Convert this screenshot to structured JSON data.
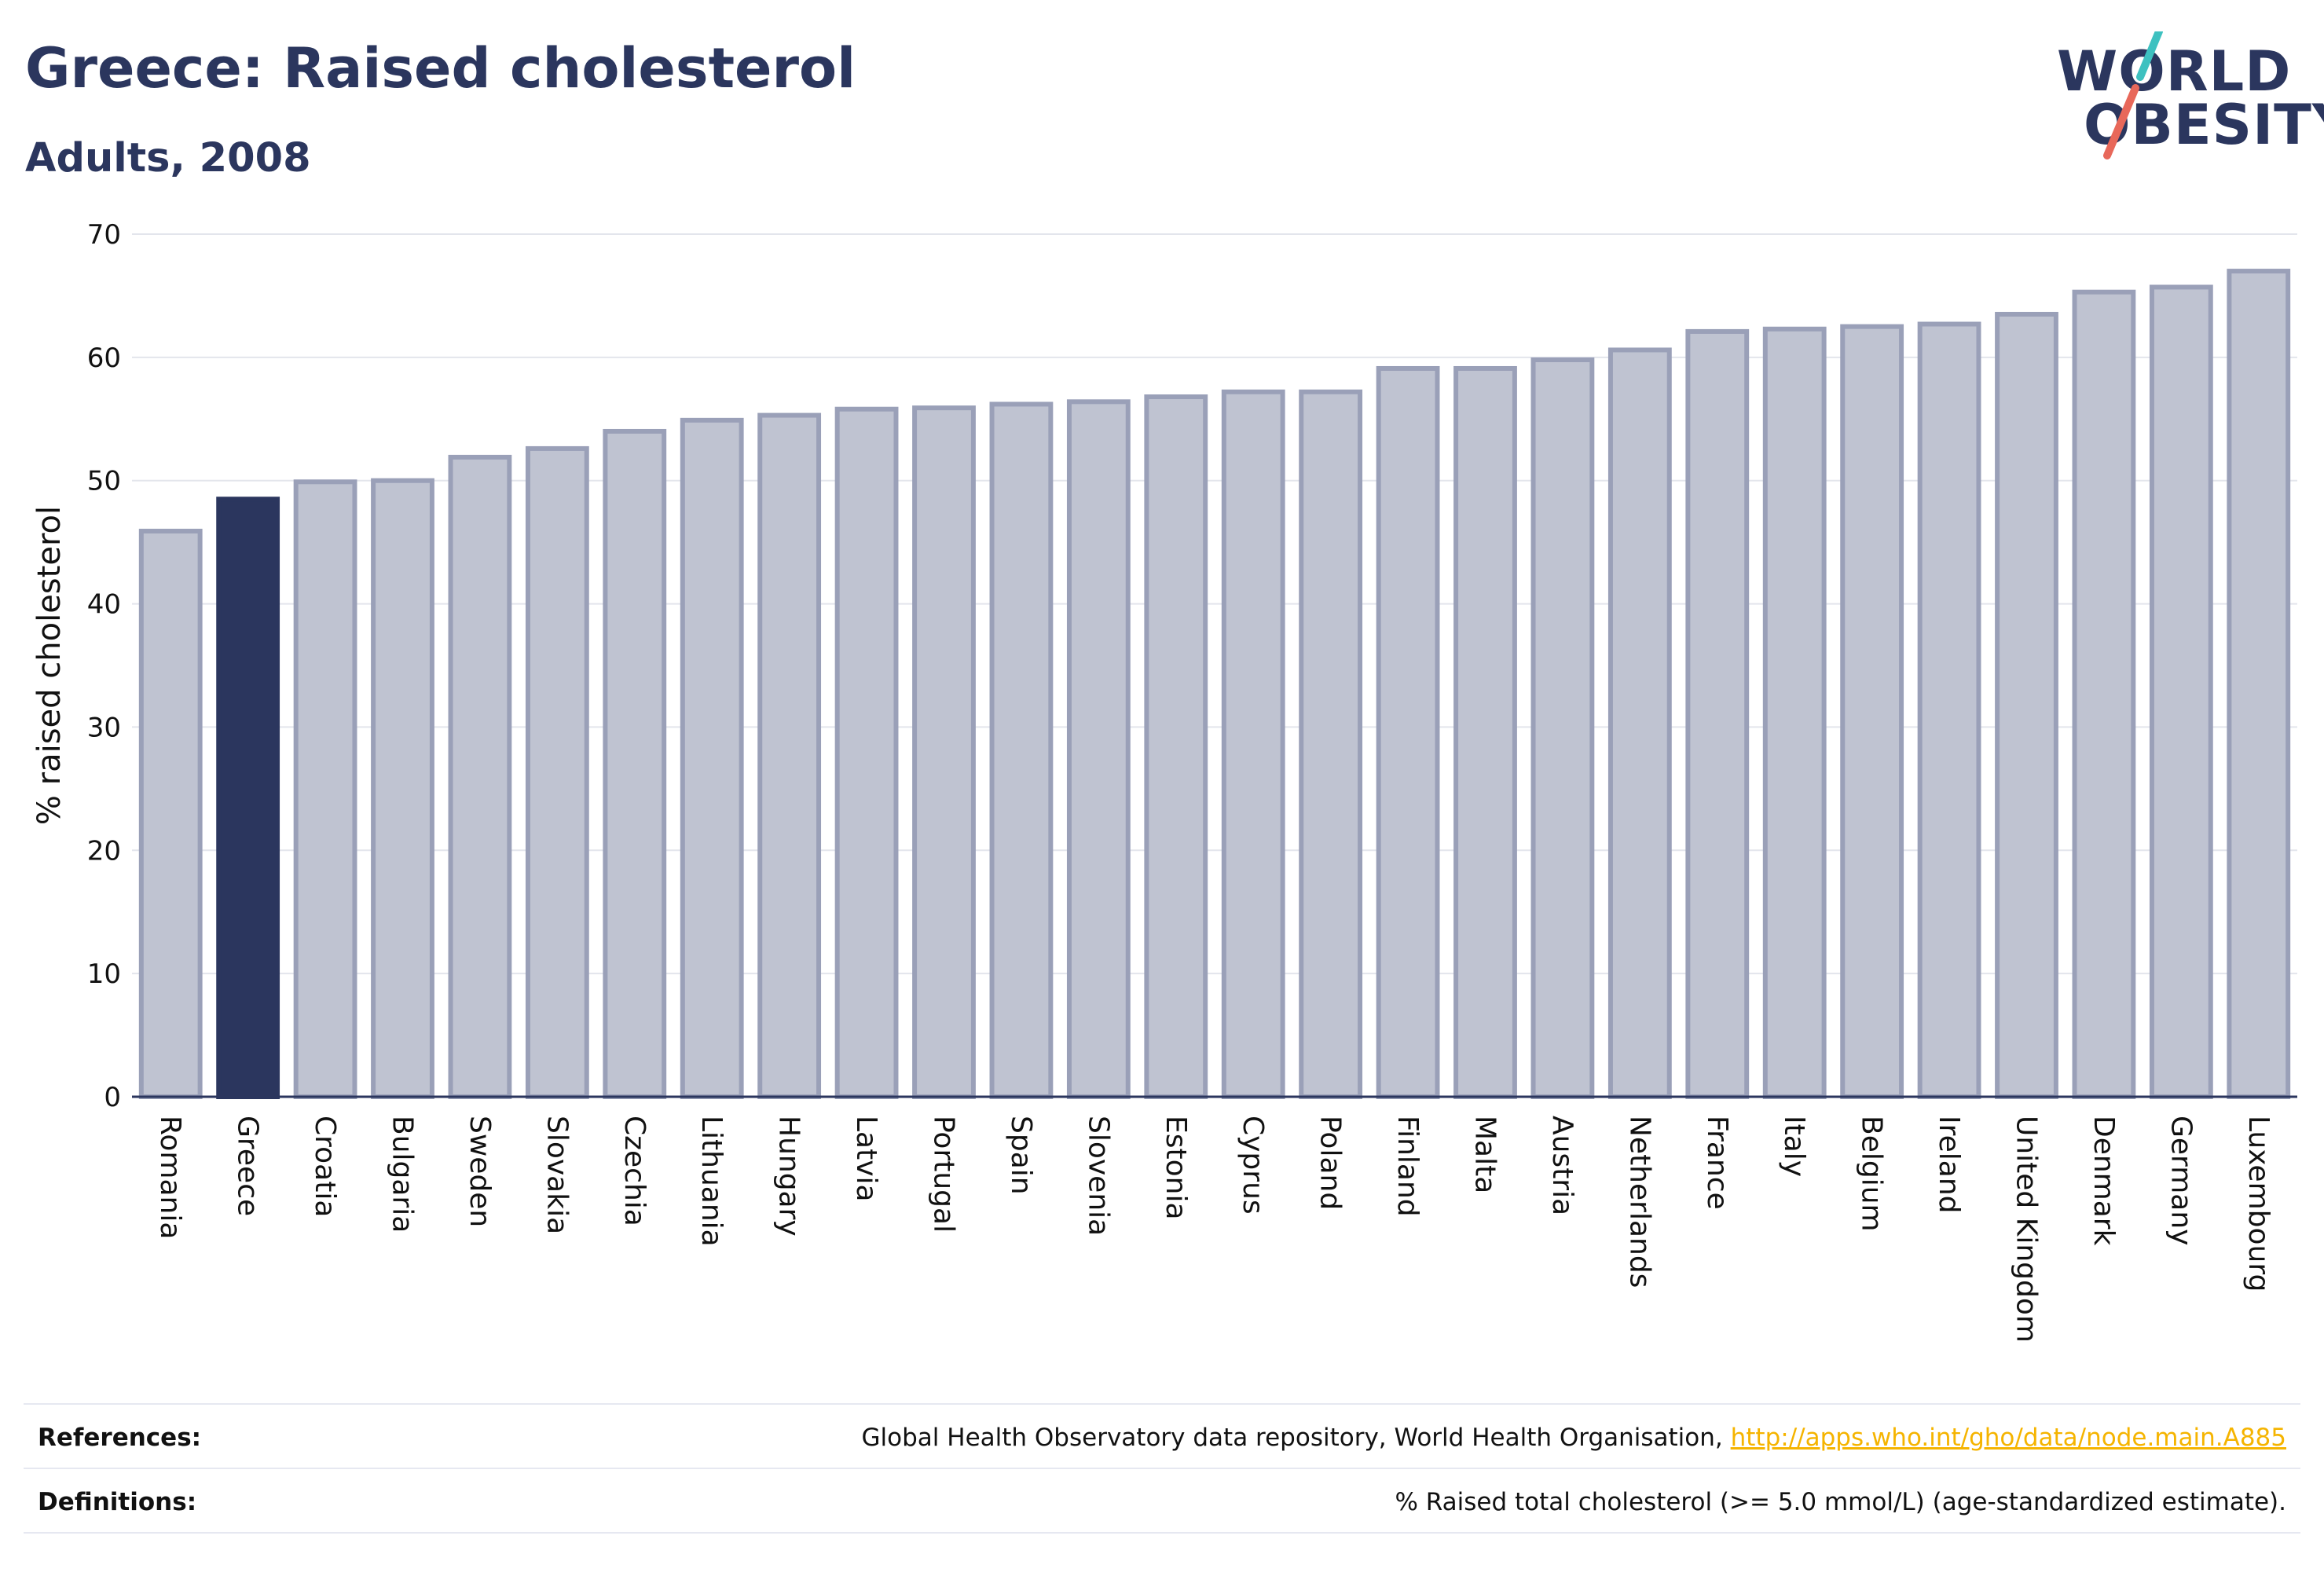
{
  "header": {
    "title": "Greece: Raised cholesterol",
    "subtitle": "Adults, 2008"
  },
  "logo": {
    "line1": "WORLD",
    "line2": "OBESITY",
    "slash_colors": [
      "#3ec1c0",
      "#e8685a"
    ]
  },
  "chart_data": {
    "type": "bar",
    "ylabel": "% raised cholesterol",
    "ylim": [
      0,
      70
    ],
    "yticks": [
      0,
      10,
      20,
      30,
      40,
      50,
      60,
      70
    ],
    "grid": true,
    "highlight": "Greece",
    "colors": {
      "bar": "#bfc3d1",
      "bar_border": "#9aa0b8",
      "highlight": "#2b365e",
      "axis": "#2b365e",
      "grid": "#e3e5ec"
    },
    "categories": [
      "Romania",
      "Greece",
      "Croatia",
      "Bulgaria",
      "Sweden",
      "Slovakia",
      "Czechia",
      "Lithuania",
      "Hungary",
      "Latvia",
      "Portugal",
      "Spain",
      "Slovenia",
      "Estonia",
      "Cyprus",
      "Poland",
      "Finland",
      "Malta",
      "Austria",
      "Netherlands",
      "France",
      "Italy",
      "Belgium",
      "Ireland",
      "United Kingdom",
      "Denmark",
      "Germany",
      "Luxembourg"
    ],
    "values": [
      45.9,
      48.5,
      49.9,
      50.0,
      51.9,
      52.6,
      54.0,
      54.9,
      55.3,
      55.8,
      55.9,
      56.2,
      56.4,
      56.8,
      57.2,
      57.2,
      59.1,
      59.1,
      59.8,
      60.6,
      62.1,
      62.3,
      62.5,
      62.7,
      63.5,
      65.3,
      65.7,
      67.0
    ]
  },
  "footer": {
    "references_label": "References:",
    "references_text": "Global Health Observatory data repository, World Health Organisation, ",
    "references_link": "http://apps.who.int/gho/data/node.main.A885",
    "definitions_label": "Definitions:",
    "definitions_text": "% Raised total cholesterol (>= 5.0 mmol/L) (age-standardized estimate)."
  }
}
